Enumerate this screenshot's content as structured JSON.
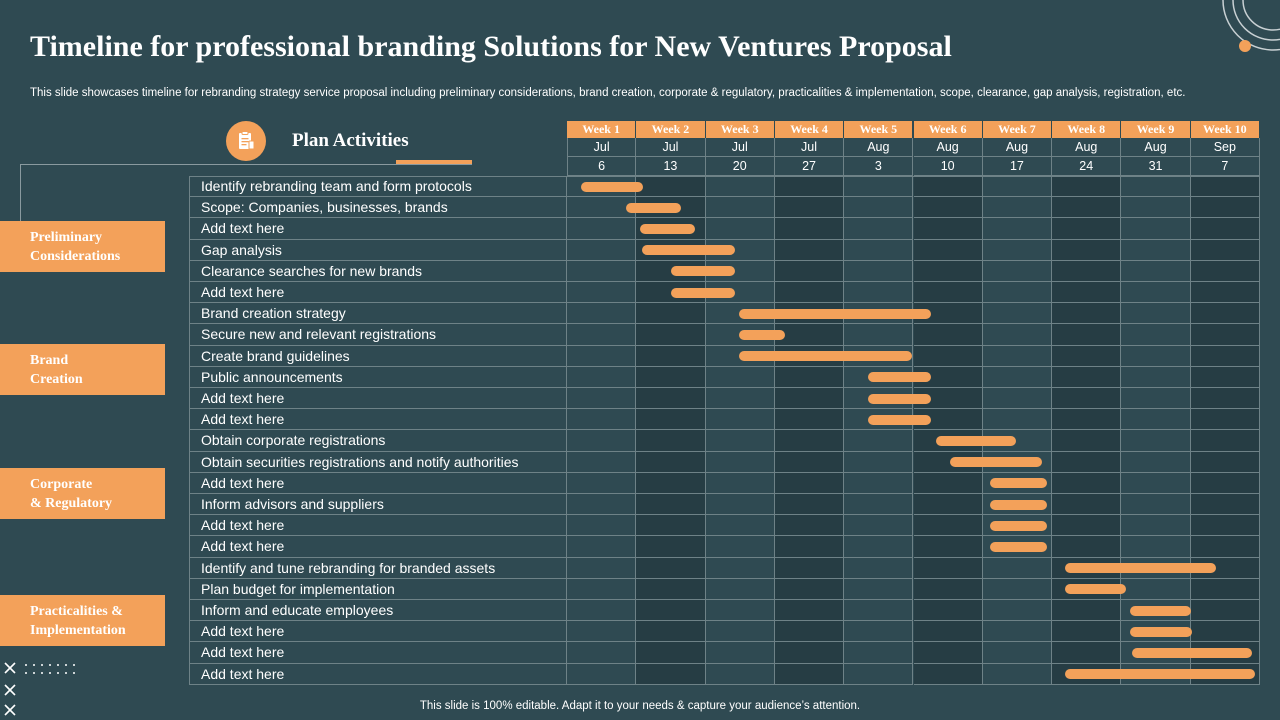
{
  "title": "Timeline for professional branding Solutions for New Ventures Proposal",
  "subtitle": "This slide showcases timeline for rebranding strategy service proposal including preliminary considerations, brand creation, corporate & regulatory, practicalities & implementation, scope, clearance, gap analysis, registration, etc.",
  "plan_label": "Plan Activities",
  "plan_icon": "document-clipboard-icon",
  "footer": "This slide is 100% editable. Adapt it to your needs & capture your audience’s attention.",
  "colors": {
    "background": "#2f4a52",
    "accent": "#f3a15a",
    "grid": "#6e8287"
  },
  "categories": [
    {
      "label": "Preliminary\nConsiderations"
    },
    {
      "label": "Brand\nCreation"
    },
    {
      "label": "Corporate\n& Regulatory"
    },
    {
      "label": "Practicalities  &\nImplementation"
    }
  ],
  "weeks": [
    {
      "label": "Week 1",
      "month": "Jul",
      "day": "6"
    },
    {
      "label": "Week 2",
      "month": "Jul",
      "day": "13"
    },
    {
      "label": "Week 3",
      "month": "Jul",
      "day": "20"
    },
    {
      "label": "Week 4",
      "month": "Jul",
      "day": "27"
    },
    {
      "label": "Week 5",
      "month": "Aug",
      "day": "3"
    },
    {
      "label": "Week 6",
      "month": "Aug",
      "day": "10"
    },
    {
      "label": "Week 7",
      "month": "Aug",
      "day": "17"
    },
    {
      "label": "Week 8",
      "month": "Aug",
      "day": "24"
    },
    {
      "label": "Week 9",
      "month": "Aug",
      "day": "31"
    },
    {
      "label": "Week 10",
      "month": "Sep",
      "day": "7"
    }
  ],
  "activities": [
    {
      "label": "Identify rebranding team and form protocols",
      "start_week": 1.2,
      "end_week": 2.1
    },
    {
      "label": "Scope: Companies, businesses, brands",
      "start_week": 1.85,
      "end_week": 2.65
    },
    {
      "label": "Add text here",
      "start_week": 2.05,
      "end_week": 2.85
    },
    {
      "label": "Gap analysis",
      "start_week": 2.08,
      "end_week": 3.42
    },
    {
      "label": "Clearance searches for new brands",
      "start_week": 2.5,
      "end_week": 3.42
    },
    {
      "label": "Add text here",
      "start_week": 2.5,
      "end_week": 3.42
    },
    {
      "label": "Brand creation strategy",
      "start_week": 3.48,
      "end_week": 6.25
    },
    {
      "label": "Secure new and relevant registrations",
      "start_week": 3.48,
      "end_week": 4.15
    },
    {
      "label": "Create brand guidelines",
      "start_week": 3.48,
      "end_week": 5.98
    },
    {
      "label": "Public announcements",
      "start_week": 5.35,
      "end_week": 6.25
    },
    {
      "label": "Add text here",
      "start_week": 5.35,
      "end_week": 6.25
    },
    {
      "label": "Add text here",
      "start_week": 5.35,
      "end_week": 6.25
    },
    {
      "label": "Obtain corporate registrations",
      "start_week": 6.33,
      "end_week": 7.48
    },
    {
      "label": "Obtain securities registrations and notify authorities",
      "start_week": 6.53,
      "end_week": 7.85
    },
    {
      "label": "Add text here",
      "start_week": 7.1,
      "end_week": 7.93
    },
    {
      "label": "Inform advisors and suppliers",
      "start_week": 7.1,
      "end_week": 7.93
    },
    {
      "label": "Add text here",
      "start_week": 7.1,
      "end_week": 7.93
    },
    {
      "label": "Add text here",
      "start_week": 7.1,
      "end_week": 7.93
    },
    {
      "label": "Identify and tune rebranding for branded assets",
      "start_week": 8.18,
      "end_week": 10.37
    },
    {
      "label": "Plan budget for implementation",
      "start_week": 8.18,
      "end_week": 9.07
    },
    {
      "label": "Inform and educate employees",
      "start_week": 9.12,
      "end_week": 10.0
    },
    {
      "label": "Add text here",
      "start_week": 9.12,
      "end_week": 10.02
    },
    {
      "label": "Add text here",
      "start_week": 9.15,
      "end_week": 10.88
    },
    {
      "label": "Add text here",
      "start_week": 8.18,
      "end_week": 10.93
    }
  ]
}
